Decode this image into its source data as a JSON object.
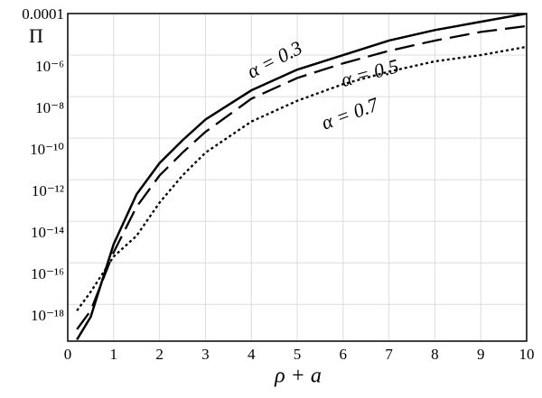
{
  "chart_data": {
    "type": "line",
    "y_label": "Π",
    "x_label": "ρ + a",
    "x": [
      0.2,
      0.5,
      1,
      1.5,
      2,
      2.5,
      3,
      4,
      5,
      6,
      7,
      8,
      9,
      10
    ],
    "series": [
      {
        "name": "α = 0.3",
        "color": "#000000",
        "style": "solid",
        "values": [
          2e-20,
          2.5e-19,
          7.9e-16,
          2e-13,
          6.3e-12,
          7.9e-11,
          7.9e-10,
          2e-08,
          2e-07,
          1e-06,
          5e-06,
          1.6e-05,
          4e-05,
          0.0001
        ]
      },
      {
        "name": "α = 0.5",
        "color": "#000000",
        "style": "dashed",
        "values": [
          6.3e-20,
          5e-19,
          3.2e-16,
          5e-14,
          1.6e-12,
          2e-11,
          2e-10,
          7.9e-09,
          7.9e-08,
          4e-07,
          1.6e-06,
          5e-06,
          1.3e-05,
          2.5e-05
        ]
      },
      {
        "name": "α = 0.7",
        "color": "#000000",
        "style": "dotted",
        "values": [
          5e-19,
          4e-18,
          2e-16,
          2e-15,
          7.9e-14,
          1.6e-12,
          2e-11,
          6.3e-10,
          6.3e-09,
          4e-08,
          1.6e-07,
          5e-07,
          1e-06,
          2.5e-06
        ]
      }
    ],
    "xlim": [
      0,
      10
    ],
    "xticks": [
      0,
      1,
      2,
      3,
      4,
      5,
      6,
      7,
      8,
      9,
      10
    ],
    "ylim": [
      1.7e-20,
      0.0001
    ],
    "ylog": true,
    "yticks": [
      0.0001,
      {
        "value": 1e-06,
        "label": "10⁻⁶"
      },
      {
        "value": 1e-08,
        "label": "10⁻⁸"
      },
      {
        "value": 1e-10,
        "label": "10⁻¹⁰"
      },
      {
        "value": 1e-12,
        "label": "10⁻¹²"
      },
      {
        "value": 1e-14,
        "label": "10⁻¹⁴"
      },
      {
        "value": 1e-16,
        "label": "10⁻¹⁶"
      },
      {
        "value": 1e-18,
        "label": "10⁻¹⁸"
      }
    ],
    "grid": true
  }
}
